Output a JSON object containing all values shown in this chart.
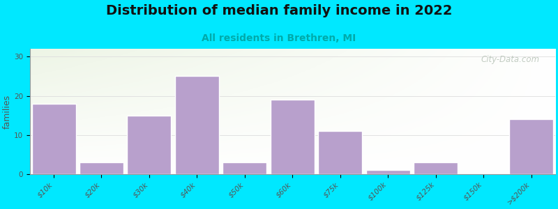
{
  "title": "Distribution of median family income in 2022",
  "subtitle": "All residents in Brethren, MI",
  "ylabel": "families",
  "categories": [
    "$10k",
    "$20k",
    "$30k",
    "$40k",
    "$50k",
    "$60k",
    "$75k",
    "$100k",
    "$125k",
    "$150k",
    ">$200k"
  ],
  "values": [
    18,
    3,
    15,
    25,
    3,
    19,
    11,
    1,
    3,
    0,
    14
  ],
  "ylim": [
    0,
    32
  ],
  "yticks": [
    0,
    10,
    20,
    30
  ],
  "bar_color": "#b8a0cc",
  "bar_edge_color": "#ffffff",
  "background_outer": "#00e8ff",
  "grad_color_left": "#d8ecd0",
  "grad_color_right": "#f5f5f0",
  "title_fontsize": 14,
  "subtitle_fontsize": 10,
  "subtitle_color": "#00aaaa",
  "ylabel_fontsize": 9,
  "tick_label_fontsize": 7.5,
  "watermark_text": "City-Data.com",
  "watermark_color": "#b8c4b8",
  "spine_color": "#999999",
  "grid_color": "#dddddd"
}
